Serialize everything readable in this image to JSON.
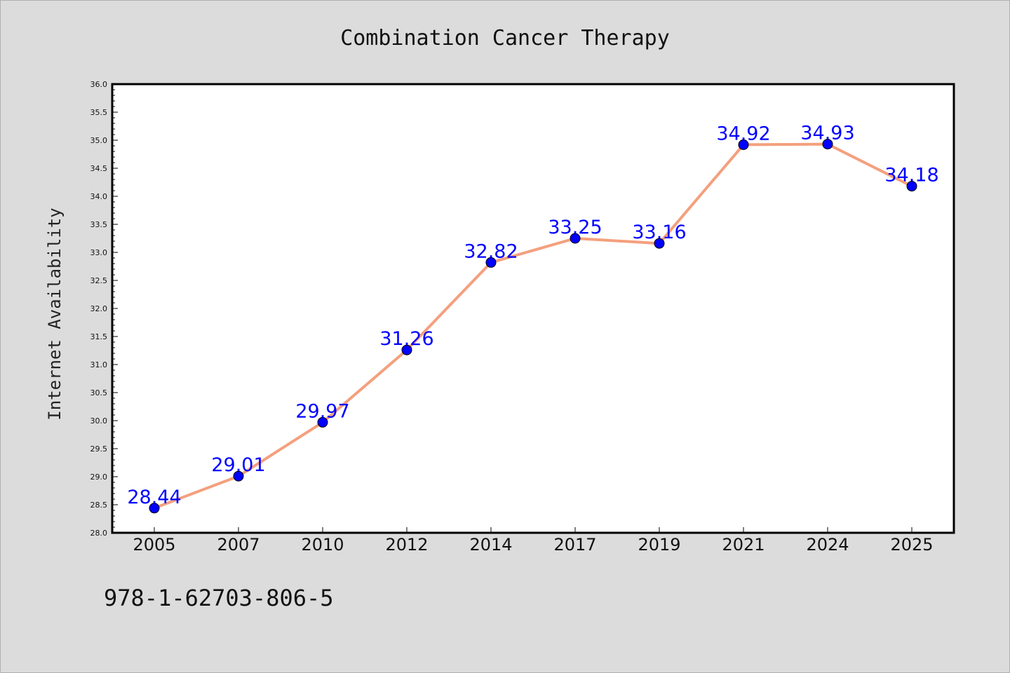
{
  "chart_data": {
    "type": "line",
    "title": "Combination Cancer Therapy",
    "xlabel": "",
    "ylabel": "Internet Availability",
    "categories": [
      "2005",
      "2007",
      "2010",
      "2012",
      "2014",
      "2017",
      "2019",
      "2021",
      "2024",
      "2025"
    ],
    "series": [
      {
        "values": [
          28.44,
          29.01,
          29.97,
          31.26,
          32.82,
          33.25,
          33.16,
          34.92,
          34.93,
          34.18
        ],
        "line_color": "#f4a07e",
        "marker_color": "#0000ff"
      }
    ],
    "data_labels": [
      "28.44",
      "29.01",
      "29.97",
      "31.26",
      "32.82",
      "33.25",
      "33.16",
      "34.92",
      "34.93",
      "34.18"
    ],
    "ylim": [
      28.0,
      36.0
    ],
    "yticks": [
      "28.0",
      "28.5",
      "29.0",
      "29.5",
      "30.0",
      "30.5",
      "31.0",
      "31.5",
      "32.0",
      "32.5",
      "33.0",
      "33.5",
      "34.0",
      "34.5",
      "35.0",
      "35.5",
      "36.0"
    ],
    "grid": false,
    "label_color": "#0000ff"
  },
  "footer": {
    "isbn": "978-1-62703-806-5"
  },
  "colors": {
    "background": "#dcdcdc",
    "plot_area": "#ffffff"
  }
}
